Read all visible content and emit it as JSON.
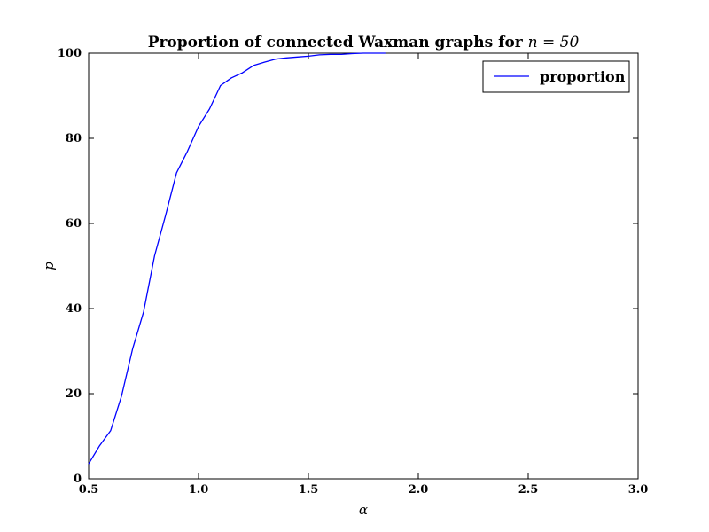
{
  "chart_data": {
    "type": "line",
    "title": "Proportion of connected Waxman graphs for ",
    "title_math": "n = 50",
    "xlabel": "α",
    "ylabel": "p",
    "xlim": [
      0.5,
      3.0
    ],
    "ylim": [
      0,
      100
    ],
    "x_ticks": [
      "0.5",
      "1.0",
      "1.5",
      "2.0",
      "2.5",
      "3.0"
    ],
    "y_ticks": [
      "0",
      "20",
      "40",
      "60",
      "80",
      "100"
    ],
    "grid": false,
    "legend_position": "top-right",
    "series": [
      {
        "name": "proportion",
        "color": "#0000ff",
        "x": [
          0.5,
          0.55,
          0.6,
          0.65,
          0.7,
          0.75,
          0.8,
          0.85,
          0.9,
          0.95,
          1.0,
          1.05,
          1.1,
          1.15,
          1.2,
          1.25,
          1.3,
          1.35,
          1.4,
          1.45,
          1.5,
          1.55,
          1.6,
          1.65,
          1.7,
          1.75,
          1.8,
          1.85
        ],
        "y": [
          3.5,
          7.8,
          11.3,
          19.5,
          30.5,
          39.2,
          52.4,
          61.9,
          71.9,
          77.0,
          82.8,
          86.9,
          92.4,
          94.2,
          95.4,
          97.1,
          97.9,
          98.6,
          98.9,
          99.1,
          99.3,
          99.6,
          99.7,
          99.7,
          99.9,
          100,
          100,
          100
        ]
      }
    ]
  }
}
